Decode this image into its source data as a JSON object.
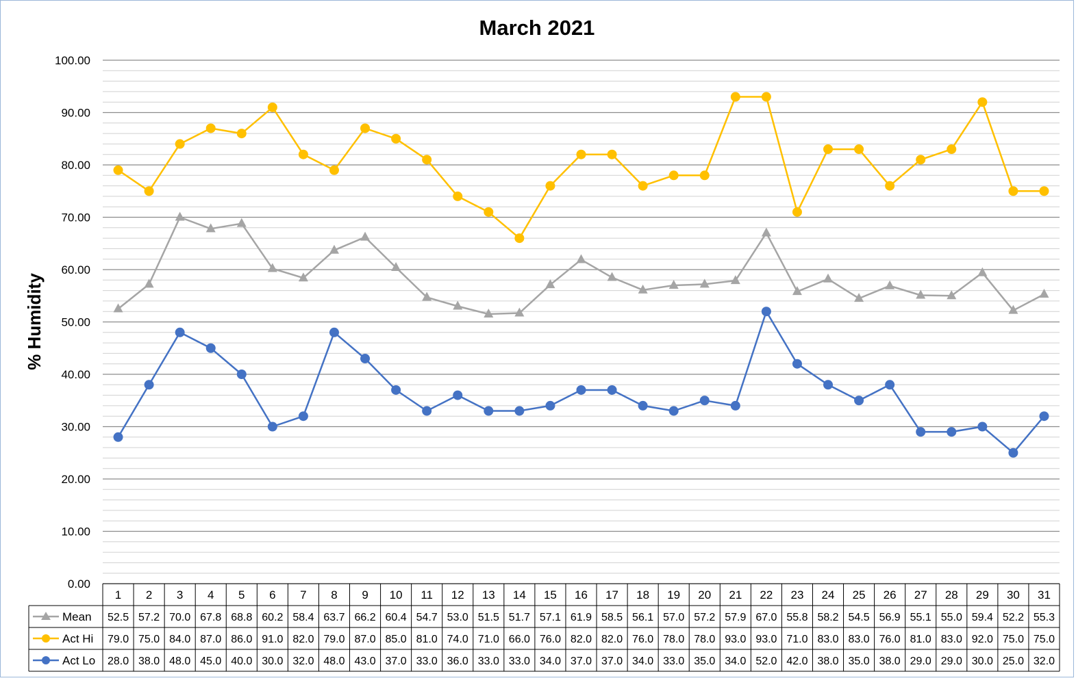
{
  "chart_data": {
    "type": "line",
    "title": "March 2021",
    "xlabel": "",
    "ylabel": "% Humidity",
    "ylim": [
      0,
      100
    ],
    "y_ticks": [
      "0.00",
      "10.00",
      "20.00",
      "30.00",
      "40.00",
      "50.00",
      "60.00",
      "70.00",
      "80.00",
      "90.00",
      "100.00"
    ],
    "minor_gridlines": true,
    "grid": true,
    "legend": "data-table",
    "categories": [
      "1",
      "2",
      "3",
      "4",
      "5",
      "6",
      "7",
      "8",
      "9",
      "10",
      "11",
      "12",
      "13",
      "14",
      "15",
      "16",
      "17",
      "18",
      "19",
      "20",
      "21",
      "22",
      "23",
      "24",
      "25",
      "26",
      "27",
      "28",
      "29",
      "30",
      "31"
    ],
    "series": [
      {
        "name": "Mean",
        "color": "#a5a5a5",
        "marker": "triangle",
        "values": [
          52.5,
          57.2,
          70.0,
          67.8,
          68.8,
          60.2,
          58.4,
          63.7,
          66.2,
          60.4,
          54.7,
          53.0,
          51.5,
          51.7,
          57.1,
          61.9,
          58.5,
          56.1,
          57.0,
          57.2,
          57.9,
          67.0,
          55.8,
          58.2,
          54.5,
          56.9,
          55.1,
          55.0,
          59.4,
          52.2,
          55.3
        ]
      },
      {
        "name": "Act Hi",
        "color": "#ffc000",
        "marker": "circle",
        "values": [
          79.0,
          75.0,
          84.0,
          87.0,
          86.0,
          91.0,
          82.0,
          79.0,
          87.0,
          85.0,
          81.0,
          74.0,
          71.0,
          66.0,
          76.0,
          82.0,
          82.0,
          76.0,
          78.0,
          78.0,
          93.0,
          93.0,
          71.0,
          83.0,
          83.0,
          76.0,
          81.0,
          83.0,
          92.0,
          75.0,
          75.0
        ]
      },
      {
        "name": "Act Lo",
        "color": "#4472c4",
        "marker": "circle",
        "values": [
          28.0,
          38.0,
          48.0,
          45.0,
          40.0,
          30.0,
          32.0,
          48.0,
          43.0,
          37.0,
          33.0,
          36.0,
          33.0,
          33.0,
          34.0,
          37.0,
          37.0,
          34.0,
          33.0,
          35.0,
          34.0,
          52.0,
          42.0,
          38.0,
          35.0,
          38.0,
          29.0,
          29.0,
          30.0,
          25.0,
          32.0
        ]
      }
    ]
  }
}
